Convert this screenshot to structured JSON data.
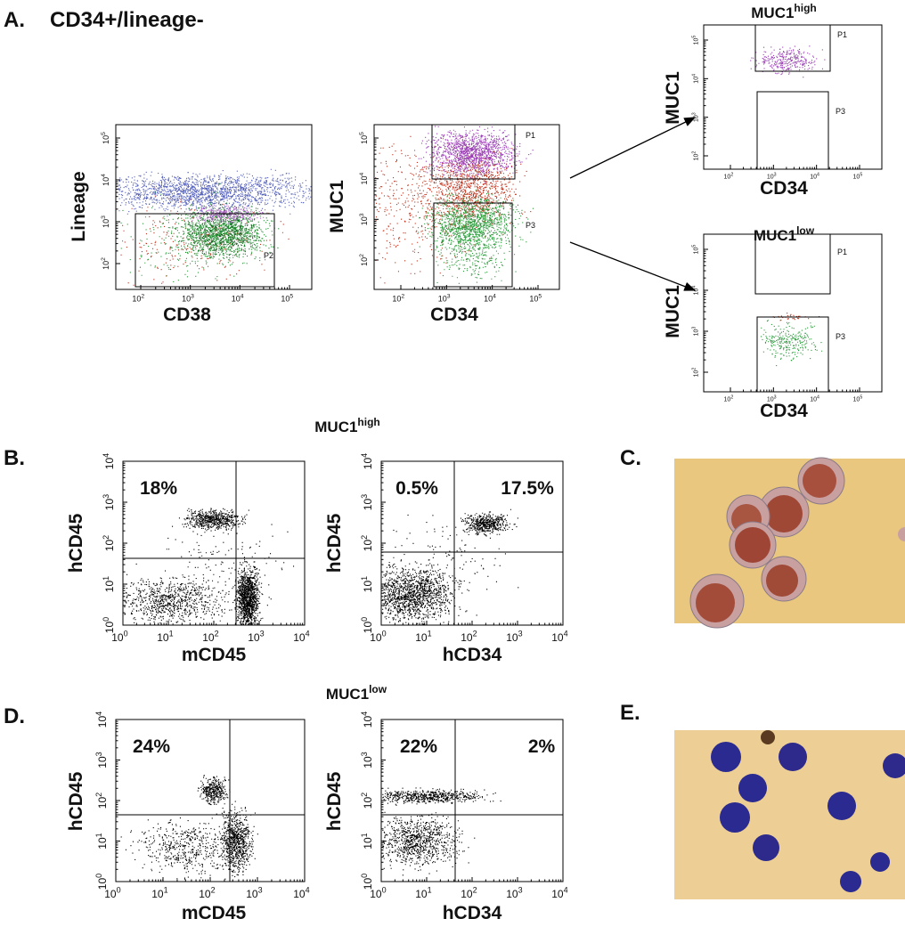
{
  "panel_a": {
    "label": "A.",
    "title": "CD34+/lineage-",
    "plots": [
      {
        "x_label": "CD38",
        "y_label": "Lineage",
        "tick_base": "10",
        "x_exponents": [
          "2",
          "3",
          "4",
          "5"
        ],
        "y_exponents": [
          "2",
          "3",
          "4",
          "5"
        ],
        "gates": [
          "P2"
        ]
      },
      {
        "x_label": "CD34",
        "y_label": "MUC1",
        "tick_base": "10",
        "x_exponents": [
          "2",
          "3",
          "4",
          "5"
        ],
        "y_exponents": [
          "2",
          "3",
          "4",
          "5"
        ],
        "gates": [
          "P1",
          "P3"
        ]
      },
      {
        "title": "MUC1",
        "title_sup": "high",
        "x_label": "CD34",
        "y_label": "MUC1",
        "tick_base": "10",
        "x_exponents": [
          "2",
          "3",
          "4",
          "5"
        ],
        "y_exponents": [
          "2",
          "3",
          "4",
          "5"
        ],
        "gates": [
          "P1",
          "P3"
        ]
      },
      {
        "title": "MUC1",
        "title_sup": "low",
        "x_label": "CD34",
        "y_label": "MUC1",
        "tick_base": "10",
        "x_exponents": [
          "2",
          "3",
          "4",
          "5"
        ],
        "y_exponents": [
          "2",
          "3",
          "4",
          "5"
        ],
        "gates": [
          "P1",
          "P3"
        ]
      }
    ]
  },
  "panel_b": {
    "label": "B.",
    "title": "MUC1",
    "title_sup": "high",
    "plots": [
      {
        "x_label": "mCD45",
        "y_label": "hCD45",
        "tick_base": "10",
        "x_exponents": [
          "0",
          "1",
          "2",
          "3",
          "4"
        ],
        "y_exponents": [
          "0",
          "1",
          "2",
          "3",
          "4"
        ],
        "quadrant_labels": [
          "18%"
        ]
      },
      {
        "x_label": "hCD34",
        "y_label": "hCD45",
        "tick_base": "10",
        "x_exponents": [
          "0",
          "1",
          "2",
          "3",
          "4"
        ],
        "y_exponents": [
          "0",
          "1",
          "2",
          "3",
          "4"
        ],
        "quadrant_labels": [
          "0.5%",
          "17.5%"
        ]
      }
    ]
  },
  "panel_c": {
    "label": "C."
  },
  "panel_d": {
    "label": "D.",
    "title": "MUC1",
    "title_sup": "low",
    "plots": [
      {
        "x_label": "mCD45",
        "y_label": "hCD45",
        "tick_base": "10",
        "x_exponents": [
          "0",
          "1",
          "2",
          "3",
          "4"
        ],
        "y_exponents": [
          "0",
          "1",
          "2",
          "3",
          "4"
        ],
        "quadrant_labels": [
          "24%"
        ]
      },
      {
        "x_label": "hCD34",
        "y_label": "hCD45",
        "tick_base": "10",
        "x_exponents": [
          "0",
          "1",
          "2",
          "3",
          "4"
        ],
        "y_exponents": [
          "0",
          "1",
          "2",
          "3",
          "4"
        ],
        "quadrant_labels": [
          "22%",
          "2%"
        ]
      }
    ]
  },
  "panel_e": {
    "label": "E."
  }
}
